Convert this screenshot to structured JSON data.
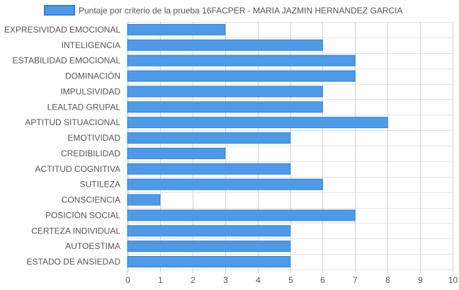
{
  "chart_data": {
    "type": "bar",
    "orientation": "horizontal",
    "legend": {
      "position": "top",
      "entries": [
        "Puntaje por criterio de la prueba 16FACPER - MARIA JAZMIN HERNANDEZ GARCIA"
      ]
    },
    "categories": [
      "EXPRESIVIDAD EMOCIONAL",
      "INTELIGENCIA",
      "ESTABILIDAD EMOCIONAL",
      "DOMINACIÓN",
      "IMPULSIVIDAD",
      "LEALTAD GRUPAL",
      "APTITUD SITUACIONAL",
      "EMOTIVIDAD",
      "CREDIBILIDAD",
      "ACTITUD COGNITIVA",
      "SUTILEZA",
      "CONSCIENCIA",
      "POSICIÓN SOCIAL",
      "CERTEZA INDIVIDUAL",
      "AUTOESTIMA",
      "ESTADO DE ANSIEDAD"
    ],
    "series": [
      {
        "name": "Puntaje por criterio de la prueba 16FACPER - MARIA JAZMIN HERNANDEZ GARCIA",
        "values": [
          3,
          6,
          7,
          7,
          6,
          6,
          8,
          5,
          3,
          5,
          6,
          1,
          7,
          5,
          5,
          5
        ],
        "color": "#4d9be8",
        "border_color": "#2f80dc"
      }
    ],
    "xlim": [
      0,
      10
    ],
    "xticks": [
      "0",
      "1",
      "2",
      "3",
      "4",
      "5",
      "6",
      "7",
      "8",
      "9",
      "10"
    ],
    "grid": true
  }
}
